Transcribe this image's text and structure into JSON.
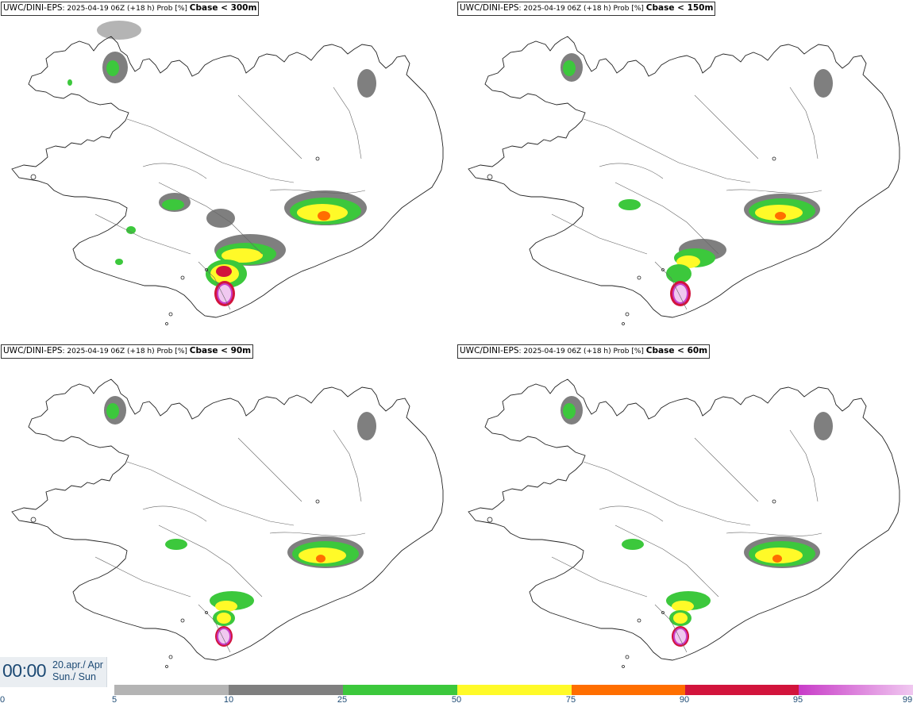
{
  "panels": [
    {
      "model": "UWC/DINI-EPS",
      "meta": ": 2025-04-19 06Z (+18 h) Prob [%]",
      "threshold": "Cbase < 300m"
    },
    {
      "model": "UWC/DINI-EPS",
      "meta": ": 2025-04-19 06Z (+18 h) Prob [%]",
      "threshold": "Cbase < 150m"
    },
    {
      "model": "UWC/DINI-EPS",
      "meta": ": 2025-04-19 06Z (+18 h) Prob [%]",
      "threshold": "Cbase < 90m"
    },
    {
      "model": "UWC/DINI-EPS",
      "meta": ": 2025-04-19 06Z (+18 h) Prob [%]",
      "threshold": "Cbase < 60m"
    }
  ],
  "time": {
    "value": "00:00",
    "date_line1": "20.apr./ Apr",
    "date_line2": "Sun./ Sun"
  },
  "legend": {
    "ticks": [
      "0",
      "5",
      "10",
      "25",
      "50",
      "75",
      "90",
      "95",
      "99"
    ],
    "colors": {
      "5-10": "#b4b4b4",
      "10-25": "#7f7f7f",
      "25-50": "#3cc83c",
      "50-75": "#fffa28",
      "75-90": "#ff6e00",
      "90-95": "#d2143c",
      "95-99": "#c83cc8",
      "99": "#f0c8f0"
    }
  }
}
